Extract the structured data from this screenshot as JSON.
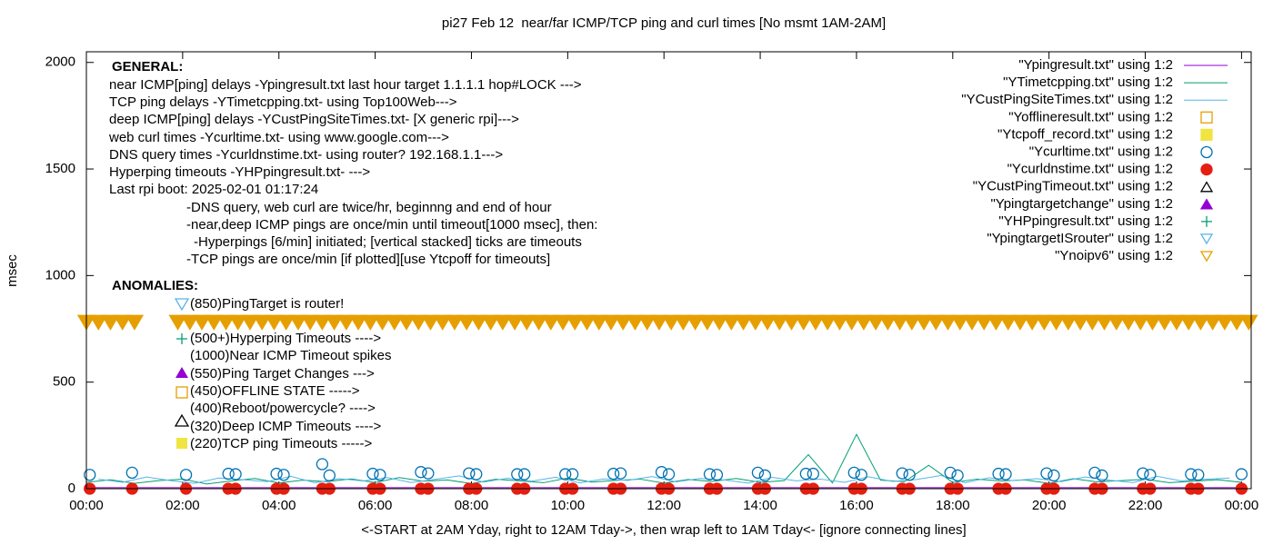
{
  "chart_data": {
    "type": "line",
    "title": "pi27 Feb 12  near/far ICMP/TCP ping and curl times [No msmt 1AM-2AM]",
    "xlabel": "<-START at 2AM Yday, right to 12AM Tday->, then wrap left to 1AM Tday<- [ignore connecting lines]",
    "ylabel": "msec",
    "xlim": [
      0,
      24.2
    ],
    "ylim": [
      0,
      2050
    ],
    "xticks": [
      {
        "value": 0,
        "label": "00:00"
      },
      {
        "value": 2,
        "label": "02:00"
      },
      {
        "value": 4,
        "label": "04:00"
      },
      {
        "value": 6,
        "label": "06:00"
      },
      {
        "value": 8,
        "label": "08:00"
      },
      {
        "value": 10,
        "label": "10:00"
      },
      {
        "value": 12,
        "label": "12:00"
      },
      {
        "value": 14,
        "label": "14:00"
      },
      {
        "value": 16,
        "label": "16:00"
      },
      {
        "value": 18,
        "label": "18:00"
      },
      {
        "value": 20,
        "label": "20:00"
      },
      {
        "value": 22,
        "label": "22:00"
      },
      {
        "value": 24,
        "label": "00:00"
      }
    ],
    "yticks": [
      0,
      500,
      1000,
      1500,
      2000
    ],
    "legend": "top-right",
    "annotations": [
      "GENERAL:",
      "near ICMP[ping] delays -Ypingresult.txt last hour target 1.1.1.1 hop#LOCK --->",
      "TCP ping delays -YTimetcpping.txt- using Top100Web--->",
      "deep ICMP[ping] delays -YCustPingSiteTimes.txt- [X generic rpi]--->",
      "web curl times -Ycurltime.txt- using www.google.com--->",
      "DNS query times -Ycurldnstime.txt- using router? 192.168.1.1--->",
      "Hyperping timeouts -YHPpingresult.txt- --->",
      "Last rpi boot: 2025-02-01 01:17:24",
      "-DNS query, web curl are twice/hr, beginnng and end of hour",
      "-near,deep ICMP pings are once/min until timeout[1000 msec], then:",
      "-Hyperpings [6/min] initiated; [vertical stacked] ticks are timeouts",
      "-TCP pings are once/min [if plotted][use Ytcpoff for timeouts]",
      "ANOMALIES:",
      "(850)PingTarget is router!",
      "(500+)Hyperping Timeouts ---->",
      "(1000)Near ICMP Timeout spikes",
      "(550)Ping Target Changes --->",
      "(450)OFFLINE STATE ----->",
      "(400)Reboot/powercycle? ---->",
      "(320)Deep ICMP Timeouts ---->",
      "(220)TCP ping Timeouts ----->"
    ],
    "series": [
      {
        "name": "\"Ypingresult.txt\" using 1:2",
        "color": "#9400d3",
        "style": "line",
        "x": [
          0,
          1,
          2,
          3,
          4,
          5,
          6,
          7,
          8,
          9,
          10,
          11,
          12,
          13,
          14,
          15,
          16,
          17,
          18,
          19,
          20,
          21,
          22,
          23,
          24
        ],
        "values": [
          5,
          5,
          5,
          5,
          5,
          5,
          5,
          5,
          5,
          5,
          5,
          5,
          5,
          5,
          5,
          5,
          5,
          5,
          5,
          5,
          5,
          5,
          5,
          5,
          5
        ]
      },
      {
        "name": "\"YTimetcpping.txt\" using 1:2",
        "color": "#009e73",
        "style": "line",
        "x": [
          0,
          0.5,
          1,
          1.5,
          2,
          2.5,
          3,
          3.5,
          4,
          4.5,
          5,
          5.5,
          6,
          6.5,
          7,
          7.5,
          8,
          8.5,
          9,
          9.5,
          10,
          10.5,
          11,
          11.5,
          12,
          12.5,
          13,
          13.5,
          14,
          14.5,
          15,
          15.5,
          16,
          16.5,
          17,
          17.5,
          18,
          18.5,
          19,
          19.5,
          20,
          20.5,
          21,
          21.5,
          22,
          22.5,
          23,
          23.5,
          24
        ],
        "values": [
          30,
          42,
          25,
          38,
          45,
          22,
          36,
          48,
          27,
          40,
          33,
          46,
          29,
          52,
          35,
          41,
          24,
          44,
          37,
          28,
          50,
          31,
          39,
          45,
          26,
          43,
          34,
          48,
          30,
          38,
          160,
          27,
          255,
          40,
          33,
          110,
          29,
          45,
          36,
          41,
          25,
          47,
          32,
          38,
          44,
          28,
          35,
          42,
          30
        ]
      },
      {
        "name": "\"YCustPingSiteTimes.txt\" using 1:2",
        "color": "#56b4e9",
        "style": "line",
        "x": [
          0.25,
          0.75,
          1.25,
          1.75,
          2.25,
          2.75,
          3.25,
          3.75,
          4.25,
          4.75,
          5.25,
          5.75,
          6.25,
          6.75,
          7.25,
          7.75,
          8.25,
          8.75,
          9.25,
          9.75,
          10.25,
          10.75,
          11.25,
          11.75,
          12.25,
          12.75,
          13.25,
          13.75,
          14.25,
          14.75,
          15.25,
          15.75,
          16.25,
          16.75,
          17.25,
          17.75,
          18.25,
          18.75,
          19.25,
          19.75,
          20.25,
          20.75,
          21.25,
          21.75,
          22.25,
          22.75,
          23.25,
          23.75
        ],
        "values": [
          45,
          30,
          55,
          38,
          25,
          50,
          42,
          33,
          58,
          28,
          47,
          36,
          52,
          29,
          44,
          60,
          31,
          49,
          35,
          54,
          27,
          46,
          39,
          57,
          32,
          48,
          41,
          26,
          53,
          37,
          45,
          30,
          56,
          34,
          43,
          62,
          28,
          51,
          38,
          47,
          33,
          55,
          40,
          29,
          58,
          36,
          44,
          50
        ]
      },
      {
        "name": "\"Yofflineresult.txt\" using 1:2",
        "color": "#e69f00",
        "style": "square-open",
        "x": [],
        "values": []
      },
      {
        "name": "\"Ytcpoff_record.txt\" using 1:2",
        "color": "#f0e442",
        "style": "square-filled",
        "x": [],
        "values": []
      },
      {
        "name": "\"Ycurltime.txt\" using 1:2",
        "color": "#0072b2",
        "style": "circle-open",
        "x": [
          0.07,
          0.95,
          2.07,
          2.95,
          3.1,
          3.95,
          4.1,
          4.9,
          5.05,
          5.95,
          6.1,
          6.95,
          7.1,
          7.95,
          8.1,
          8.95,
          9.1,
          9.95,
          10.1,
          10.95,
          11.1,
          11.95,
          12.1,
          12.95,
          13.1,
          13.95,
          14.1,
          14.95,
          15.1,
          15.95,
          16.1,
          16.95,
          17.1,
          17.95,
          18.1,
          18.95,
          19.1,
          19.95,
          20.1,
          20.95,
          21.1,
          21.95,
          22.1,
          22.95,
          23.1,
          24.0
        ],
        "values": [
          65,
          75,
          65,
          70,
          68,
          70,
          65,
          115,
          62,
          70,
          65,
          78,
          72,
          72,
          68,
          68,
          68,
          68,
          68,
          70,
          72,
          78,
          68,
          68,
          65,
          75,
          62,
          70,
          70,
          75,
          65,
          72,
          65,
          75,
          62,
          70,
          68,
          72,
          62,
          75,
          62,
          72,
          65,
          68,
          65,
          68
        ]
      },
      {
        "name": "\"Ycurldnstime.txt\" using 1:2",
        "color": "#e51e10",
        "style": "circle-filled",
        "x": [
          0.07,
          0.95,
          2.07,
          2.95,
          3.1,
          3.95,
          4.1,
          4.9,
          5.05,
          5.95,
          6.1,
          6.95,
          7.1,
          7.95,
          8.1,
          8.95,
          9.1,
          9.95,
          10.1,
          10.95,
          11.1,
          11.95,
          12.1,
          12.95,
          13.1,
          13.95,
          14.1,
          14.95,
          15.1,
          15.95,
          16.1,
          16.95,
          17.1,
          17.95,
          18.1,
          18.95,
          19.1,
          19.95,
          20.1,
          20.95,
          21.1,
          21.95,
          22.1,
          22.95,
          23.1,
          24.0
        ],
        "values": [
          0,
          0,
          0,
          0,
          0,
          0,
          0,
          0,
          0,
          0,
          0,
          0,
          0,
          0,
          0,
          0,
          0,
          0,
          0,
          0,
          0,
          0,
          0,
          0,
          0,
          0,
          0,
          0,
          0,
          0,
          0,
          0,
          0,
          0,
          0,
          0,
          0,
          0,
          0,
          0,
          0,
          0,
          0,
          0,
          0,
          0
        ]
      },
      {
        "name": "\"YCustPingTimeout.txt\" using 1:2",
        "color": "#000000",
        "style": "triangle-open",
        "x": [],
        "values": []
      },
      {
        "name": "\"Ypingtargetchange\" using 1:2",
        "color": "#9400d3",
        "style": "triangle-filled",
        "x": [],
        "values": []
      },
      {
        "name": "\"YHPpingresult.txt\" using 1:2",
        "color": "#009e73",
        "style": "plus",
        "x": [],
        "values": []
      },
      {
        "name": "\"YpingtargetISrouter\" using 1:2",
        "color": "#56b4e9",
        "style": "triangle-down-open",
        "x": [],
        "values": []
      },
      {
        "name": "\"Ynoipv6\" using 1:2",
        "color": "#e69f00",
        "style": "triangle-down-open",
        "x": [
          0,
          0.25,
          0.5,
          0.75,
          1.0,
          1.9,
          2.15,
          2.4,
          2.65,
          2.9,
          3.15,
          3.4,
          3.65,
          3.9,
          4.15,
          4.4,
          4.65,
          4.9,
          5.15,
          5.4,
          5.65,
          5.9,
          6.15,
          6.4,
          6.65,
          6.9,
          7.15,
          7.4,
          7.65,
          7.9,
          8.15,
          8.4,
          8.65,
          8.9,
          9.15,
          9.4,
          9.65,
          9.9,
          10.15,
          10.4,
          10.65,
          10.9,
          11.15,
          11.4,
          11.65,
          11.9,
          12.15,
          12.4,
          12.65,
          12.9,
          13.15,
          13.4,
          13.65,
          13.9,
          14.15,
          14.4,
          14.65,
          14.9,
          15.15,
          15.4,
          15.65,
          15.9,
          16.15,
          16.4,
          16.65,
          16.9,
          17.15,
          17.4,
          17.65,
          17.9,
          18.15,
          18.4,
          18.65,
          18.9,
          19.15,
          19.4,
          19.65,
          19.9,
          20.15,
          20.4,
          20.65,
          20.9,
          21.15,
          21.4,
          21.65,
          21.9,
          22.15,
          22.4,
          22.65,
          22.9,
          23.15,
          23.4,
          23.65,
          23.9,
          24.15
        ],
        "values": [
          780,
          780,
          780,
          780,
          780,
          780,
          780,
          780,
          780,
          780,
          780,
          780,
          780,
          780,
          780,
          780,
          780,
          780,
          780,
          780,
          780,
          780,
          780,
          780,
          780,
          780,
          780,
          780,
          780,
          780,
          780,
          780,
          780,
          780,
          780,
          780,
          780,
          780,
          780,
          780,
          780,
          780,
          780,
          780,
          780,
          780,
          780,
          780,
          780,
          780,
          780,
          780,
          780,
          780,
          780,
          780,
          780,
          780,
          780,
          780,
          780,
          780,
          780,
          780,
          780,
          780,
          780,
          780,
          780,
          780,
          780,
          780,
          780,
          780,
          780,
          780,
          780,
          780,
          780,
          780,
          780,
          780,
          780,
          780,
          780,
          780,
          780,
          780,
          780,
          780,
          780,
          780,
          780,
          780,
          780
        ]
      }
    ]
  }
}
